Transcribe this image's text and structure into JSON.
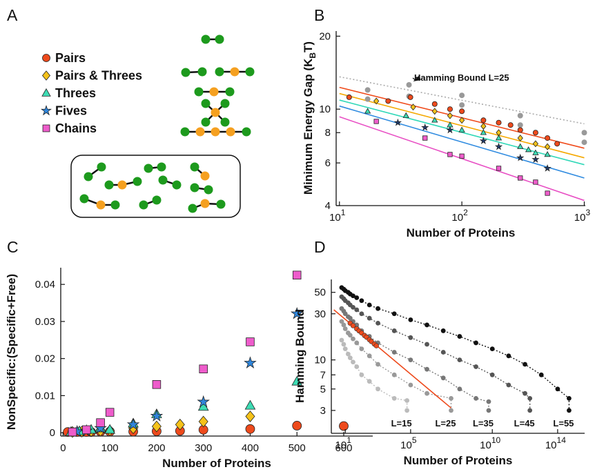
{
  "panel_a": {
    "label": "A",
    "legend": [
      {
        "name": "Pairs",
        "marker": "circle",
        "color": "#ee4a1c"
      },
      {
        "name": "Pairs & Threes",
        "marker": "diamond",
        "color": "#f5c21a"
      },
      {
        "name": "Threes",
        "marker": "triangle",
        "color": "#3ddcb4"
      },
      {
        "name": "Fives",
        "marker": "star",
        "color": "#2f86dc"
      },
      {
        "name": "Chains",
        "marker": "square",
        "color": "#ee5ccb"
      }
    ]
  },
  "chart_data": [
    {
      "panel": "B",
      "type": "scatter",
      "log_x": true,
      "log_y": true,
      "xlabel": "Number of Proteins",
      "ylabel": {
        "text": "Minimum Energy Gap (K",
        "sub": "B",
        "tail": "T)"
      },
      "xlim": [
        9.4,
        1020
      ],
      "ylim": [
        4,
        21
      ],
      "xticks": [
        {
          "value": 10,
          "label": "10",
          "exp": "1"
        },
        {
          "value": 100,
          "label": "10",
          "exp": "2"
        },
        {
          "value": 1000,
          "label": "10",
          "exp": "3"
        }
      ],
      "yticks": [
        4,
        6,
        8,
        10,
        20
      ],
      "series": [
        {
          "marker": "circle",
          "color": "#ee4a1c",
          "x": [
            12,
            25,
            38,
            60,
            80,
            100,
            150,
            200,
            250,
            300,
            400,
            500,
            600
          ],
          "values": [
            11.2,
            10.8,
            11.2,
            10.5,
            10,
            9.8,
            9,
            8.8,
            8.6,
            8.2,
            8,
            7.6,
            7.2
          ]
        },
        {
          "marker": "diamond",
          "color": "#f5c21a",
          "x": [
            20,
            40,
            60,
            80,
            100,
            150,
            200,
            300,
            400,
            500
          ],
          "values": [
            10.8,
            10.2,
            9.8,
            9.4,
            9,
            8.5,
            8,
            7.6,
            7.2,
            7
          ]
        },
        {
          "marker": "triangle",
          "color": "#3ddcb4",
          "x": [
            17,
            35,
            60,
            80,
            100,
            150,
            200,
            300,
            350,
            400,
            500
          ],
          "values": [
            9.8,
            9.4,
            9,
            8.6,
            8.2,
            8,
            7.6,
            7,
            6.8,
            6.6,
            6.5
          ]
        },
        {
          "marker": "star",
          "color": "#1e3a6e",
          "x": [
            30,
            50,
            80,
            150,
            200,
            300,
            400,
            500
          ],
          "values": [
            8.8,
            8.4,
            8.2,
            7.4,
            7,
            6.3,
            6.2,
            5.7
          ]
        },
        {
          "marker": "square",
          "color": "#ee5ccb",
          "x": [
            20,
            50,
            80,
            100,
            200,
            300,
            400,
            500
          ],
          "values": [
            8.9,
            7.6,
            6.5,
            6.4,
            5.7,
            5.2,
            5,
            4.5
          ]
        }
      ],
      "reference": {
        "color": "#999999",
        "x": [
          17,
          17,
          37,
          37,
          100,
          100,
          300,
          300,
          1000,
          1000
        ],
        "values": [
          12,
          11,
          12.6,
          11.3,
          11.4,
          10.4,
          9.4,
          8.6,
          8,
          7.3
        ]
      },
      "fit_lines": [
        {
          "color": "#f04a1a",
          "x": [
            10,
            1000
          ],
          "values": [
            12.3,
            6.9
          ]
        },
        {
          "color": "#f5a800",
          "x": [
            10,
            1000
          ],
          "values": [
            11.6,
            6.3
          ]
        },
        {
          "color": "#30d8b8",
          "x": [
            10,
            1000
          ],
          "values": [
            10.9,
            5.9
          ]
        },
        {
          "color": "#2f8be0",
          "x": [
            10,
            1000
          ],
          "values": [
            10.3,
            5.2
          ]
        },
        {
          "color": "#e84fc4",
          "x": [
            10,
            1000
          ],
          "values": [
            9.3,
            4.2
          ]
        },
        {
          "color": "#aaaaaa",
          "dashed": true,
          "x": [
            10,
            1000
          ],
          "values": [
            13.6,
            8.7
          ]
        }
      ],
      "annotation": "Hamming Bound L=25"
    },
    {
      "panel": "C",
      "type": "scatter",
      "log_x": false,
      "log_y": false,
      "xlabel": "Number of Proteins",
      "ylabel": "NonSpecific:(Specific+Free)",
      "xlim": [
        -5,
        662
      ],
      "ylim": [
        -0.0009,
        0.0445
      ],
      "xticks": [
        0,
        100,
        200,
        300,
        400,
        500,
        600
      ],
      "yticks": [
        0,
        0.01,
        0.02,
        0.03,
        0.04
      ],
      "series": [
        {
          "marker": "circle",
          "color": "#ee4a1c",
          "x": [
            10,
            20,
            30,
            40,
            50,
            60,
            80,
            100,
            150,
            200,
            250,
            300,
            400,
            500,
            600
          ],
          "values": [
            0.0002,
            0.0002,
            0.0002,
            0.0002,
            0.0002,
            0.0002,
            0.0003,
            0.0003,
            0.0003,
            0.0004,
            0.0005,
            0.0008,
            0.001,
            0.0019,
            0.0018
          ]
        },
        {
          "marker": "diamond",
          "color": "#f5c21a",
          "x": [
            20,
            40,
            60,
            80,
            100,
            150,
            200,
            250,
            300,
            400
          ],
          "values": [
            0.0002,
            0.0003,
            0.0004,
            0.0005,
            0.0006,
            0.0012,
            0.0017,
            0.0022,
            0.003,
            0.0044
          ]
        },
        {
          "marker": "triangle",
          "color": "#3ddcb4",
          "x": [
            17,
            35,
            60,
            80,
            100,
            150,
            200,
            300,
            400,
            500
          ],
          "values": [
            0.0002,
            0.0004,
            0.0008,
            0.0012,
            0.0008,
            0.0025,
            0.005,
            0.007,
            0.0073,
            0.0138
          ]
        },
        {
          "marker": "star",
          "color": "#2f86dc",
          "x": [
            30,
            50,
            80,
            150,
            200,
            300,
            400,
            500
          ],
          "values": [
            0.0003,
            0.0005,
            0.0012,
            0.0022,
            0.0045,
            0.0083,
            0.0188,
            0.0321
          ]
        },
        {
          "marker": "square",
          "color": "#ee5ccb",
          "x": [
            20,
            50,
            80,
            100,
            200,
            300,
            400,
            500
          ],
          "values": [
            0.0002,
            0.0008,
            0.0027,
            0.0055,
            0.013,
            0.0172,
            0.0245,
            0.0425
          ]
        }
      ]
    },
    {
      "panel": "D",
      "type": "line",
      "log_x": true,
      "log_y": true,
      "xlabel": "Number of Proteins",
      "ylabel": "Hamming Bound",
      "xlim": [
        1.4,
        4500000000000000.0
      ],
      "ylim": [
        1.74,
        68
      ],
      "xticks": [
        {
          "value": 10,
          "label": "10",
          "exp": "1"
        },
        {
          "value": 100000,
          "label": "10",
          "exp": "5"
        },
        {
          "value": 10000000000.0,
          "label": "10",
          "exp": "10"
        },
        {
          "value": 100000000000000.0,
          "label": "10",
          "exp": "14"
        }
      ],
      "yticks": [
        3,
        5,
        7,
        10,
        30,
        50
      ],
      "series": [
        {
          "name": "L=55",
          "color": "#111111",
          "x": [
            6,
            8,
            10,
            15,
            20,
            30,
            50,
            100,
            300,
            1000.0,
            10000.0,
            100000.0,
            1000000.0,
            10000000.0,
            100000000.0,
            1000000000.0,
            10000000000.0,
            100000000000.0,
            1000000000000.0,
            10000000000000.0,
            100000000000000.0,
            500000000000000.0,
            500000000000000.0
          ],
          "values": [
            56,
            54,
            52,
            50,
            48,
            46,
            44,
            41,
            37,
            34,
            30,
            26,
            23,
            20,
            17.5,
            15,
            13,
            11,
            9,
            7,
            5,
            4,
            3
          ]
        },
        {
          "name": "L=45",
          "color": "#555555",
          "x": [
            6,
            8,
            10,
            15,
            20,
            30,
            50,
            100,
            300,
            1000.0,
            10000.0,
            100000.0,
            1000000.0,
            10000000.0,
            100000000.0,
            1000000000.0,
            10000000000.0,
            100000000000.0,
            1000000000000.0,
            2000000000000.0,
            2000000000000.0
          ],
          "values": [
            45,
            43,
            41,
            39,
            37,
            35,
            33,
            30,
            27,
            24,
            20,
            17,
            14.5,
            12,
            10,
            8.5,
            7,
            5.5,
            4.5,
            4,
            3
          ]
        },
        {
          "name": "L=35",
          "color": "#777777",
          "x": [
            6,
            8,
            10,
            15,
            20,
            30,
            50,
            100,
            300,
            1000.0,
            10000.0,
            100000.0,
            1000000.0,
            10000000.0,
            100000000.0,
            1000000000.0,
            6000000000.0,
            6000000000.0
          ],
          "values": [
            34,
            32,
            30,
            28,
            27,
            25,
            23,
            20,
            17.5,
            15,
            12,
            10,
            8,
            6.5,
            5,
            4,
            3.7,
            3
          ]
        },
        {
          "name": "L=25",
          "color": "#999999",
          "x": [
            6,
            8,
            10,
            15,
            20,
            30,
            50,
            100,
            300,
            1000.0,
            10000.0,
            100000.0,
            1000000.0,
            30000000.0,
            30000000.0
          ],
          "values": [
            25,
            23,
            21,
            19,
            18,
            16.5,
            15,
            13,
            11,
            9,
            7,
            5.5,
            4.5,
            4,
            3
          ]
        },
        {
          "name": "L=15",
          "color": "#bbbbbb",
          "x": [
            6,
            8,
            10,
            15,
            20,
            30,
            50,
            100,
            300,
            1000.0,
            10000.0,
            60000.0,
            60000.0
          ],
          "values": [
            16,
            14.5,
            13,
            11.5,
            10.5,
            9.5,
            8.5,
            7,
            6,
            5,
            4,
            3.8,
            3
          ]
        }
      ],
      "red_points": {
        "color": "#ee4a1c",
        "x": [
          20,
          30,
          50,
          70,
          100,
          150,
          200,
          300,
          400,
          600,
          800
        ],
        "values": [
          24,
          22.6,
          21,
          20,
          19,
          17.9,
          17.2,
          16.2,
          15.5,
          14.6,
          14
        ]
      },
      "red_line": {
        "color": "#ee4a1c",
        "x": [
          2,
          30000000.0
        ],
        "values": [
          33,
          3.18
        ]
      }
    }
  ]
}
